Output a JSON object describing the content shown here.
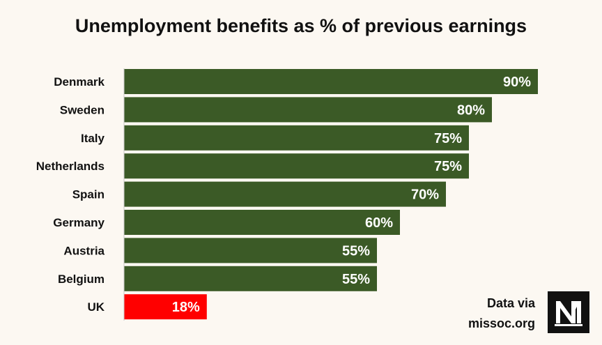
{
  "chart_data": {
    "type": "bar",
    "orientation": "horizontal",
    "title": "Unemployment benefits as % of previous earnings",
    "categories": [
      "Denmark",
      "Sweden",
      "Italy",
      "Netherlands",
      "Spain",
      "Germany",
      "Austria",
      "Belgium",
      "UK"
    ],
    "values": [
      90,
      80,
      75,
      75,
      70,
      60,
      55,
      55,
      18
    ],
    "value_labels": [
      "90%",
      "80%",
      "75%",
      "75%",
      "70%",
      "60%",
      "55%",
      "55%",
      "18%"
    ],
    "bar_colors": [
      "#3b5a26",
      "#3b5a26",
      "#3b5a26",
      "#3b5a26",
      "#3b5a26",
      "#3b5a26",
      "#3b5a26",
      "#3b5a26",
      "#ff0000"
    ],
    "xlim": [
      0,
      100
    ],
    "grid": false,
    "legend": "none"
  },
  "source": {
    "line1": "Data via",
    "line2": "missoc.org"
  },
  "logo": {
    "icon": "nm-logo-icon"
  },
  "colors": {
    "background": "#fcf8f2",
    "bar": "#3b5a26",
    "highlight": "#ff0000",
    "label": "#ffffff"
  }
}
